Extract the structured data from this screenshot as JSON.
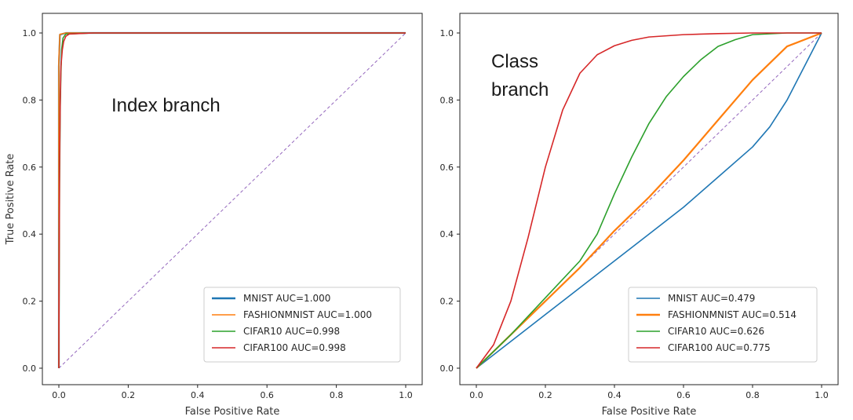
{
  "chart_data": [
    {
      "type": "line",
      "annotation": [
        "Index branch"
      ],
      "xlabel": "False Positive Rate",
      "ylabel": "True Positive Rate",
      "xlim": [
        0,
        1
      ],
      "ylim": [
        0,
        1
      ],
      "xticks": [
        "0.0",
        "0.2",
        "0.4",
        "0.6",
        "0.8",
        "1.0"
      ],
      "yticks": [
        "0.0",
        "0.2",
        "0.4",
        "0.6",
        "0.8",
        "1.0"
      ],
      "grid": false,
      "legend_position": "lower-right",
      "diagonal_color": "#9467bd",
      "series": [
        {
          "name": "MNIST  AUC=1.000",
          "color": "#1f77b4",
          "bold": true,
          "x": [
            0,
            0,
            0.003,
            0.02,
            0.1,
            1.0
          ],
          "y": [
            0,
            0.9,
            0.995,
            1.0,
            1.0,
            1.0
          ]
        },
        {
          "name": "FASHIONMNIST  AUC=1.000",
          "color": "#ff7f0e",
          "bold": false,
          "x": [
            0,
            0,
            0.003,
            0.02,
            0.1,
            1.0
          ],
          "y": [
            0,
            0.92,
            0.996,
            1.0,
            1.0,
            1.0
          ]
        },
        {
          "name": "CIFAR10  AUC=0.998",
          "color": "#2ca02c",
          "bold": false,
          "x": [
            0,
            0.002,
            0.004,
            0.006,
            0.008,
            0.012,
            0.02,
            0.1,
            1.0
          ],
          "y": [
            0,
            0.55,
            0.78,
            0.88,
            0.95,
            0.985,
            0.997,
            1.0,
            1.0
          ]
        },
        {
          "name": "CIFAR100  AUC=0.998",
          "color": "#d62728",
          "bold": false,
          "x": [
            0,
            0.002,
            0.004,
            0.006,
            0.01,
            0.014,
            0.02,
            0.03,
            0.1,
            1.0
          ],
          "y": [
            0,
            0.6,
            0.8,
            0.9,
            0.95,
            0.975,
            0.99,
            0.997,
            1.0,
            1.0
          ]
        }
      ]
    },
    {
      "type": "line",
      "annotation": [
        "Class",
        "branch"
      ],
      "xlabel": "False Positive Rate",
      "ylabel": "",
      "xlim": [
        0,
        1
      ],
      "ylim": [
        0,
        1
      ],
      "xticks": [
        "0.0",
        "0.2",
        "0.4",
        "0.6",
        "0.8",
        "1.0"
      ],
      "yticks": [
        "0.0",
        "0.2",
        "0.4",
        "0.6",
        "0.8",
        "1.0"
      ],
      "grid": false,
      "legend_position": "lower-right",
      "diagonal_color": "#9467bd",
      "series": [
        {
          "name": "MNIST  AUC=0.479",
          "color": "#1f77b4",
          "bold": false,
          "x": [
            0,
            0.1,
            0.2,
            0.3,
            0.4,
            0.5,
            0.6,
            0.7,
            0.8,
            0.85,
            0.9,
            0.95,
            1.0
          ],
          "y": [
            0,
            0.08,
            0.16,
            0.24,
            0.32,
            0.4,
            0.48,
            0.57,
            0.66,
            0.72,
            0.8,
            0.9,
            1.0
          ]
        },
        {
          "name": "FASHIONMNIST  AUC=0.514",
          "color": "#ff7f0e",
          "bold": true,
          "x": [
            0,
            0.1,
            0.2,
            0.3,
            0.4,
            0.5,
            0.6,
            0.7,
            0.8,
            0.9,
            1.0
          ],
          "y": [
            0,
            0.1,
            0.2,
            0.3,
            0.41,
            0.51,
            0.62,
            0.74,
            0.86,
            0.96,
            1.0
          ]
        },
        {
          "name": "CIFAR10  AUC=0.626",
          "color": "#2ca02c",
          "bold": false,
          "x": [
            0,
            0.1,
            0.2,
            0.3,
            0.35,
            0.4,
            0.45,
            0.5,
            0.55,
            0.6,
            0.65,
            0.7,
            0.75,
            0.8,
            0.9,
            1.0
          ],
          "y": [
            0,
            0.1,
            0.21,
            0.32,
            0.4,
            0.52,
            0.63,
            0.73,
            0.81,
            0.87,
            0.92,
            0.96,
            0.98,
            0.995,
            1.0,
            1.0
          ]
        },
        {
          "name": "CIFAR100  AUC=0.775",
          "color": "#d62728",
          "bold": false,
          "x": [
            0,
            0.05,
            0.1,
            0.15,
            0.2,
            0.25,
            0.3,
            0.35,
            0.4,
            0.45,
            0.5,
            0.6,
            0.7,
            0.8,
            0.9,
            1.0
          ],
          "y": [
            0,
            0.07,
            0.2,
            0.39,
            0.6,
            0.77,
            0.88,
            0.935,
            0.962,
            0.978,
            0.988,
            0.995,
            0.998,
            1.0,
            1.0,
            1.0
          ]
        }
      ]
    }
  ]
}
